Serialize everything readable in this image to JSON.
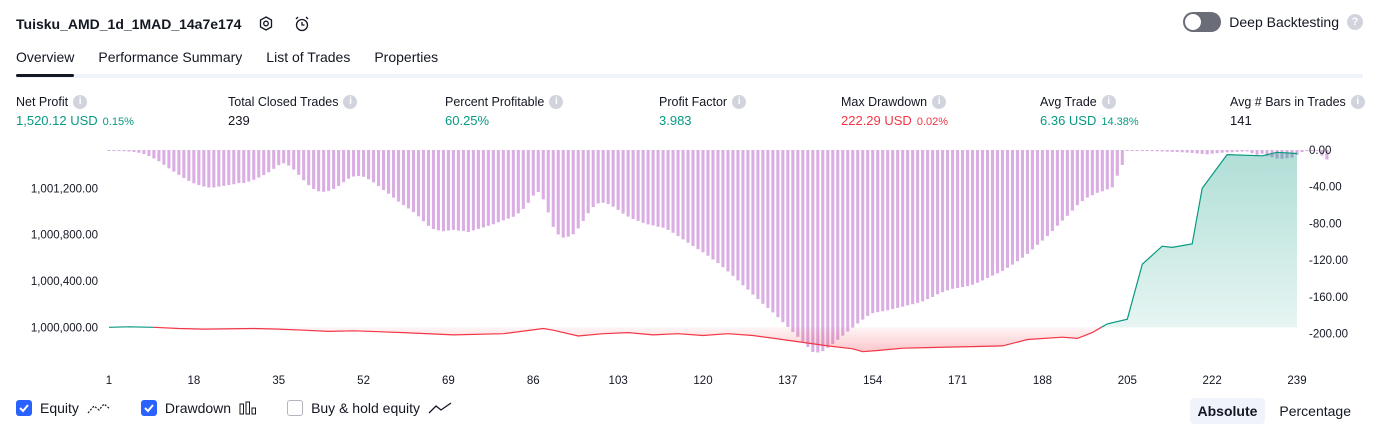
{
  "header": {
    "title": "Tuisku_AMD_1d_1MAD_14a7e174",
    "deep_backtesting_label": "Deep Backtesting",
    "deep_backtesting_on": false
  },
  "tabs": [
    {
      "label": "Overview",
      "active": true
    },
    {
      "label": "Performance Summary",
      "active": false
    },
    {
      "label": "List of Trades",
      "active": false
    },
    {
      "label": "Properties",
      "active": false
    }
  ],
  "metrics": [
    {
      "label": "Net Profit",
      "value": "1,520.12 USD",
      "pct": "0.15%",
      "color": "#089981"
    },
    {
      "label": "Total Closed Trades",
      "value": "239",
      "pct": "",
      "color": "#131722"
    },
    {
      "label": "Percent Profitable",
      "value": "60.25%",
      "pct": "",
      "color": "#089981"
    },
    {
      "label": "Profit Factor",
      "value": "3.983",
      "pct": "",
      "color": "#089981"
    },
    {
      "label": "Max Drawdown",
      "value": "222.29 USD",
      "pct": "0.02%",
      "color": "#f23645"
    },
    {
      "label": "Avg Trade",
      "value": "6.36 USD",
      "pct": "14.38%",
      "color": "#089981"
    },
    {
      "label": "Avg # Bars in Trades",
      "value": "141",
      "pct": "",
      "color": "#131722"
    }
  ],
  "legend": {
    "equity": {
      "label": "Equity",
      "checked": true
    },
    "drawdown": {
      "label": "Drawdown",
      "checked": true
    },
    "buyhold": {
      "label": "Buy & hold equity",
      "checked": false
    }
  },
  "scale_buttons": [
    {
      "label": "Absolute",
      "active": true
    },
    {
      "label": "Percentage",
      "active": false
    }
  ],
  "colors": {
    "profit": "#089981",
    "loss": "#f23645",
    "drawdown_bar": "#ce93d8",
    "accent": "#2962ff"
  },
  "chart_data": {
    "type": "line",
    "x_ticks": [
      "1",
      "18",
      "35",
      "52",
      "69",
      "86",
      "103",
      "120",
      "137",
      "154",
      "171",
      "188",
      "205",
      "222",
      "239"
    ],
    "left_axis": {
      "ticks": [
        "1,001,200.00",
        "1,000,800.00",
        "1,000,400.00",
        "1,000,000.00"
      ],
      "tick_values": [
        1001200,
        1000800,
        1000400,
        1000000
      ],
      "range": [
        999770,
        1001530
      ]
    },
    "right_axis": {
      "ticks": [
        "0.00",
        "-40.00",
        "-80.00",
        "-120.00",
        "-160.00",
        "-200.00"
      ],
      "tick_values": [
        0,
        -40,
        -80,
        -120,
        -160,
        -200
      ],
      "range": [
        -222.29,
        0
      ]
    },
    "series": [
      {
        "name": "Equity",
        "x": [
          1,
          5,
          10,
          15,
          20,
          30,
          35,
          40,
          45,
          50,
          60,
          70,
          80,
          88,
          90,
          95,
          100,
          105,
          110,
          115,
          120,
          125,
          130,
          135,
          140,
          145,
          150,
          152,
          155,
          160,
          165,
          170,
          175,
          180,
          185,
          192,
          195,
          198,
          201,
          205,
          208,
          212,
          214,
          218,
          220,
          225,
          232,
          235,
          239
        ],
        "values": [
          1000000,
          1000005,
          1000000,
          999990,
          999985,
          999990,
          999985,
          999975,
          999965,
          999970,
          999955,
          999935,
          999945,
          999990,
          999975,
          999925,
          999945,
          999955,
          999935,
          999945,
          999930,
          999945,
          999930,
          999900,
          999870,
          999840,
          999815,
          999790,
          999800,
          999820,
          999825,
          999830,
          999835,
          999840,
          999895,
          999915,
          999905,
          999955,
          1000030,
          1000070,
          1000545,
          1000700,
          1000690,
          1000720,
          1001200,
          1001490,
          1001480,
          1001510,
          1001500
        ]
      },
      {
        "name": "Drawdown",
        "kind": "bars",
        "values": [
          -0.5,
          -0.6,
          -0.8,
          -1.2,
          -1.6,
          -2.1,
          -3.0,
          -4.4,
          -6.5,
          -9.2,
          -12.3,
          -16.1,
          -20.0,
          -23.5,
          -27.1,
          -30.5,
          -33.7,
          -36.3,
          -38.2,
          -39.8,
          -40.8,
          -40.8,
          -39.8,
          -39.1,
          -38.1,
          -37.3,
          -36.0,
          -35.9,
          -34.4,
          -32.5,
          -30.0,
          -27.3,
          -24.2,
          -20.5,
          -16.5,
          -14.5,
          -16.9,
          -21.4,
          -27.1,
          -33.0,
          -38.3,
          -42.5,
          -45.0,
          -45.5,
          -44.5,
          -42.4,
          -39.2,
          -35.1,
          -31.3,
          -28.9,
          -28.3,
          -29.2,
          -31.9,
          -35.3,
          -39.3,
          -43.7,
          -47.7,
          -51.9,
          -56.2,
          -60.1,
          -63.7,
          -67.7,
          -72.3,
          -77.6,
          -82.6,
          -86.1,
          -87.6,
          -88.5,
          -87.8,
          -87.1,
          -87.8,
          -88.2,
          -89.4,
          -87.6,
          -86.0,
          -84.4,
          -82.7,
          -80.9,
          -78.7,
          -76.7,
          -74.8,
          -72.8,
          -69.1,
          -64.2,
          -57.6,
          -49.7,
          -45.7,
          -53.8,
          -68.0,
          -83.8,
          -92.1,
          -95.4,
          -94.4,
          -91.8,
          -85.5,
          -77.4,
          -68.9,
          -62.2,
          -58.2,
          -57.5,
          -58.9,
          -61.7,
          -65.2,
          -69.3,
          -72.6,
          -75.2,
          -77.3,
          -79.4,
          -81.1,
          -82.2,
          -83.6,
          -84.7,
          -87.1,
          -90.2,
          -93.8,
          -97.4,
          -101.0,
          -104.5,
          -108.1,
          -111.5,
          -115.2,
          -119.3,
          -123.2,
          -127.7,
          -132.3,
          -137.1,
          -142.1,
          -147.4,
          -152.2,
          -157.6,
          -162.4,
          -167.6,
          -172.0,
          -177.0,
          -182.2,
          -187.6,
          -192.8,
          -198.3,
          -203.6,
          -208.9,
          -214.7,
          -220.1,
          -220.6,
          -219.2,
          -215.6,
          -211.4,
          -206.8,
          -202.3,
          -197.8,
          -193.5,
          -189.1,
          -184.8,
          -180.8,
          -177.8,
          -176.7,
          -175.7,
          -174.6,
          -173.3,
          -172.0,
          -170.7,
          -169.3,
          -168.0,
          -166.6,
          -164.9,
          -162.5,
          -160.1,
          -157.2,
          -154.9,
          -152.9,
          -151.2,
          -150.3,
          -149.3,
          -148.3,
          -146.8,
          -144.6,
          -142.1,
          -139.5,
          -136.9,
          -134.4,
          -131.7,
          -128.4,
          -124.9,
          -121.2,
          -117.3,
          -113.2,
          -108.4,
          -103.3,
          -98.7,
          -93.8,
          -88.2,
          -82.5,
          -76.9,
          -71.7,
          -66.0,
          -60.2,
          -55.6,
          -51.8,
          -49.2,
          -46.6,
          -45.0,
          -43.0,
          -40.7,
          -28.0,
          -16.3,
          -0.4,
          -0.5,
          -0.7,
          -0.9,
          -1.0,
          -1.2,
          -1.4,
          -1.6,
          -1.8,
          -2.0,
          -2.2,
          -2.5,
          -2.8,
          -3.2,
          -3.7,
          -4.2,
          -4.7,
          -4.0,
          -3.4,
          -2.9,
          -2.5,
          -2.4,
          -2.0,
          -1.7,
          -1.5,
          -3.5,
          -5.2,
          -4.1,
          -6.7,
          -7.9,
          -9.4,
          -9.6,
          -8.9,
          -8.3,
          -5.3,
          -2.2,
          -0.6,
          -0.3,
          -1.0,
          -6.1,
          -10.4
        ]
      },
      {
        "name": "Buy & hold equity",
        "visible": false,
        "values": []
      }
    ]
  }
}
